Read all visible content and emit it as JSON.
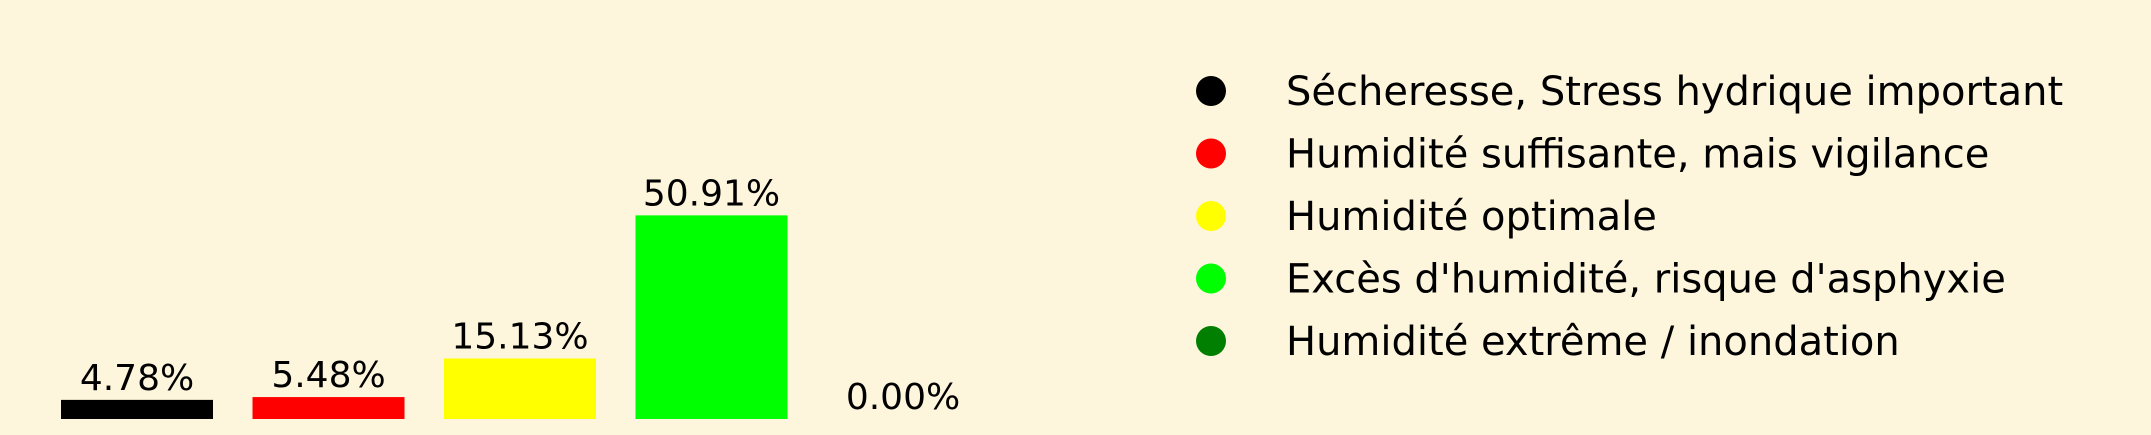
{
  "chart_data": {
    "type": "bar",
    "categories": [
      "Sécheresse, Stress hydrique important",
      "Humidité suffisante, mais vigilance",
      "Humidité optimale",
      "Excès d'humidité, risque d'asphyxie",
      "Humidité extrême / inondation"
    ],
    "values": [
      4.78,
      5.48,
      15.13,
      50.91,
      0.0
    ],
    "value_labels": [
      "4.78%",
      "5.48%",
      "15.13%",
      "50.91%",
      "0.00%"
    ],
    "colors": [
      "#000000",
      "#ff0000",
      "#ffff00",
      "#00ff00",
      "#007f00"
    ],
    "legend": {
      "placement": "right",
      "entries": [
        "Sécheresse, Stress hydrique important",
        "Humidité suffisante, mais vigilance",
        "Humidité optimale",
        "Excès d'humidité, risque d'asphyxie",
        "Humidité extrême / inondation"
      ]
    },
    "title": "",
    "xlabel": "",
    "ylabel": "",
    "ylim": [
      0,
      60
    ],
    "grid": false
  }
}
